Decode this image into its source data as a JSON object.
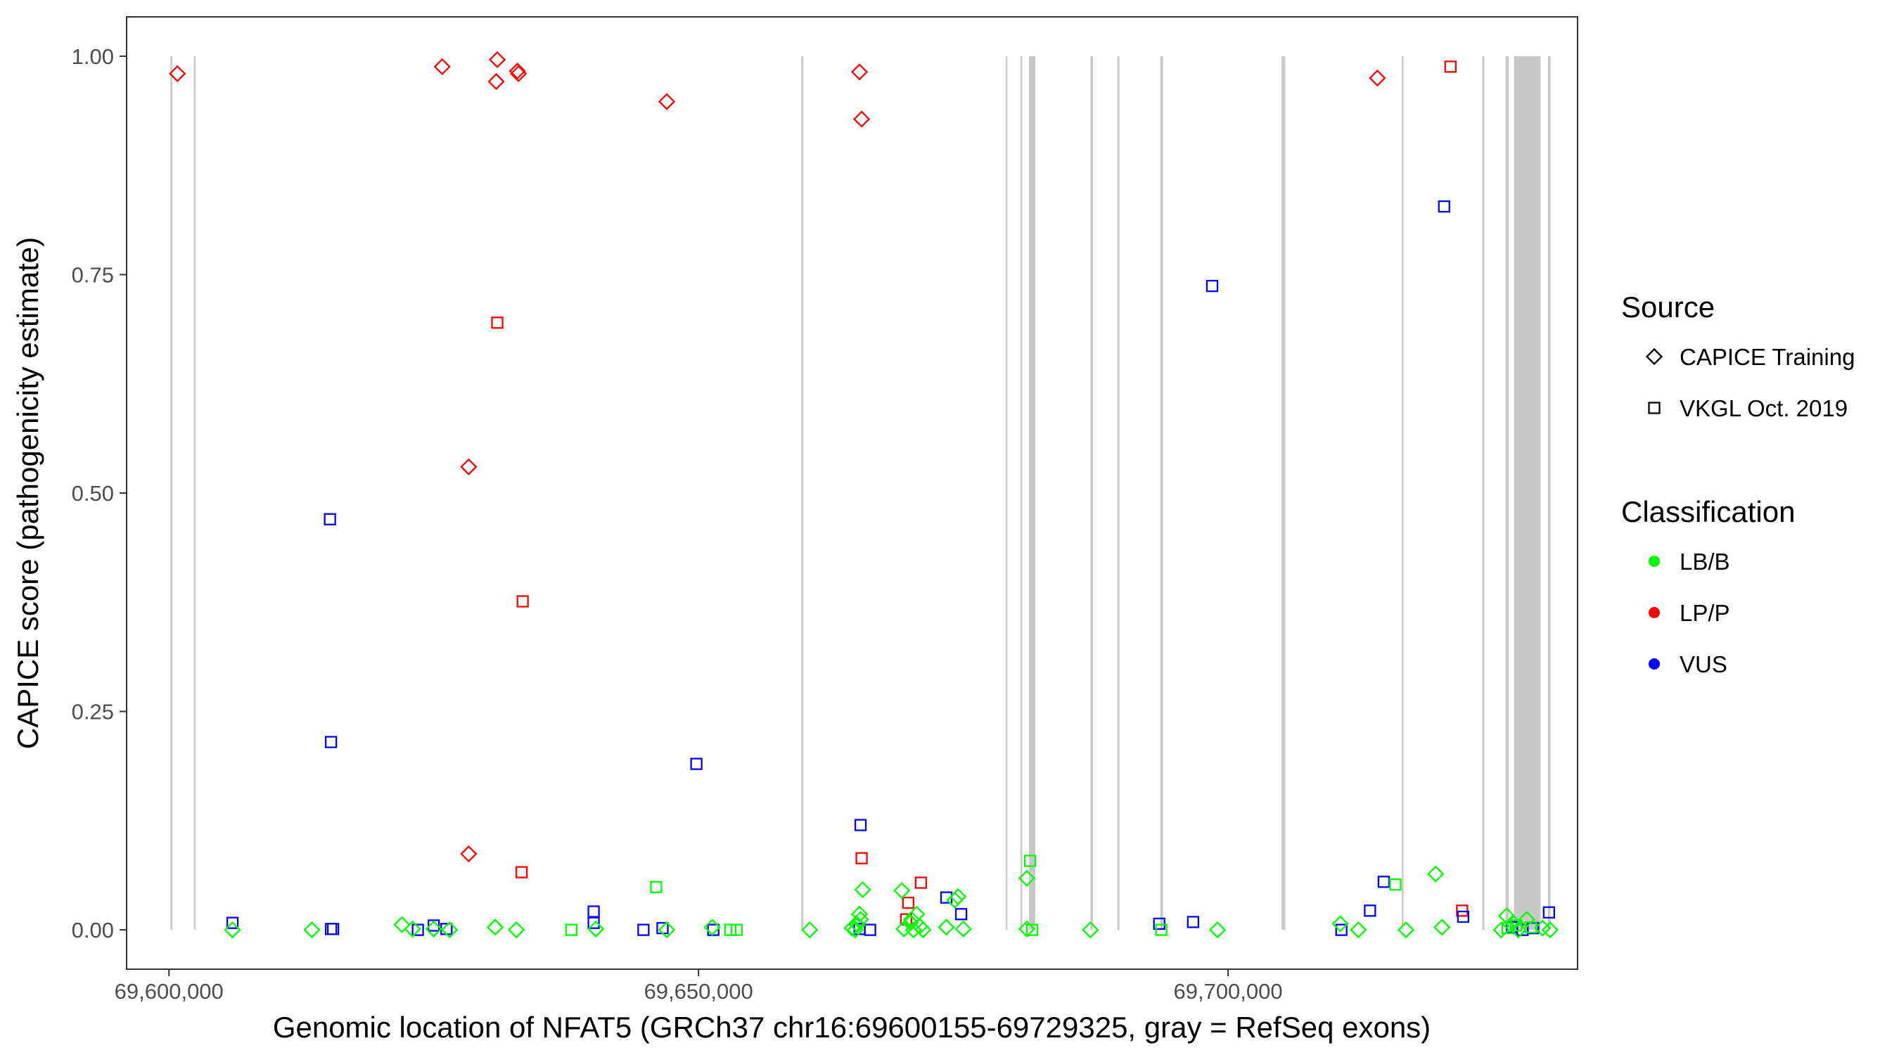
{
  "chart_data": {
    "type": "scatter",
    "title": "",
    "xlabel": "Genomic location of NFAT5 (GRCh37 chr16:69600155-69729325, gray = RefSeq exons)",
    "ylabel": "CAPICE score (pathogenicity estimate)",
    "xlim": [
      69596000,
      69733000
    ],
    "ylim": [
      -0.045,
      1.045
    ],
    "x_ticks": [
      69600000,
      69650000,
      69700000
    ],
    "x_tick_labels": [
      "69,600,000",
      "69,650,000",
      "69,700,000"
    ],
    "y_ticks": [
      0,
      0.25,
      0.5,
      0.75,
      1.0
    ],
    "y_tick_labels": [
      "0.00",
      "0.25",
      "0.50",
      "0.75",
      "1.00"
    ],
    "grid": false,
    "exons": [
      [
        69600150,
        69600250
      ],
      [
        69602350,
        69602450
      ],
      [
        69659700,
        69659900
      ],
      [
        69679000,
        69679100
      ],
      [
        69680400,
        69680550
      ],
      [
        69681200,
        69681800
      ],
      [
        69687000,
        69687250
      ],
      [
        69689550,
        69689750
      ],
      [
        69693600,
        69693850
      ],
      [
        69705050,
        69705400
      ],
      [
        69716400,
        69716550
      ],
      [
        69724000,
        69724200
      ],
      [
        69726200,
        69726500
      ],
      [
        69727000,
        69729500
      ],
      [
        69730200,
        69730450
      ]
    ],
    "colors": {
      "LB/B": "#00ff00",
      "LP/P": "#ff0000",
      "VUS": "#0000ff",
      "exon": "#c8c8c8"
    },
    "legend": {
      "position": "right",
      "source_title": "Source",
      "source_items": [
        {
          "label": "CAPICE Training",
          "shape": "diamond"
        },
        {
          "label": "VKGL Oct. 2019",
          "shape": "square"
        }
      ],
      "classification_title": "Classification",
      "classification_items": [
        {
          "label": "LB/B",
          "color": "#00ff00"
        },
        {
          "label": "LP/P",
          "color": "#ff0000"
        },
        {
          "label": "VUS",
          "color": "#0000ff"
        }
      ]
    },
    "series": [
      {
        "source": "CAPICE Training",
        "classification": "LP/P",
        "shape": "diamond",
        "color": "#ff0000",
        "points": [
          [
            69600800,
            0.98
          ],
          [
            69625800,
            0.988
          ],
          [
            69631000,
            0.996
          ],
          [
            69630900,
            0.971
          ],
          [
            69632900,
            0.983
          ],
          [
            69633000,
            0.98
          ],
          [
            69647000,
            0.948
          ],
          [
            69665200,
            0.982
          ],
          [
            69665400,
            0.928
          ],
          [
            69628300,
            0.53
          ],
          [
            69628300,
            0.087
          ],
          [
            69714100,
            0.975
          ]
        ]
      },
      {
        "source": "VKGL Oct. 2019",
        "classification": "LP/P",
        "shape": "square",
        "color": "#ff0000",
        "points": [
          [
            69631000,
            0.695
          ],
          [
            69633400,
            0.376
          ],
          [
            69633300,
            0.066
          ],
          [
            69665400,
            0.082
          ],
          [
            69669800,
            0.031
          ],
          [
            69671000,
            0.054
          ],
          [
            69721000,
            0.988
          ],
          [
            69722100,
            0.022
          ],
          [
            69669600,
            0.012
          ]
        ]
      },
      {
        "source": "VKGL Oct. 2019",
        "classification": "VUS",
        "shape": "square",
        "color": "#0000ff",
        "points": [
          [
            69606000,
            0.008
          ],
          [
            69615200,
            0.47
          ],
          [
            69615300,
            0.215
          ],
          [
            69615300,
            0.001
          ],
          [
            69615500,
            0.001
          ],
          [
            69623500,
            0.0
          ],
          [
            69625000,
            0.005
          ],
          [
            69626200,
            0.001
          ],
          [
            69640100,
            0.021
          ],
          [
            69640100,
            0.008
          ],
          [
            69644800,
            0.0
          ],
          [
            69646600,
            0.002
          ],
          [
            69649800,
            0.19
          ],
          [
            69651400,
            0.0
          ],
          [
            69665300,
            0.12
          ],
          [
            69665200,
            0.001
          ],
          [
            69666200,
            0.0
          ],
          [
            69673400,
            0.037
          ],
          [
            69674800,
            0.018
          ],
          [
            69693500,
            0.007
          ],
          [
            69696700,
            0.009
          ],
          [
            69698500,
            0.737
          ],
          [
            69710700,
            0.0
          ],
          [
            69713400,
            0.022
          ],
          [
            69714700,
            0.055
          ],
          [
            69720400,
            0.828
          ],
          [
            69722200,
            0.015
          ],
          [
            69726800,
            0.003
          ],
          [
            69727800,
            0.0
          ],
          [
            69728800,
            0.002
          ],
          [
            69730300,
            0.02
          ]
        ]
      },
      {
        "source": "CAPICE Training",
        "classification": "LB/B",
        "shape": "diamond",
        "color": "#00ff00",
        "points": [
          [
            69606000,
            0.0
          ],
          [
            69613500,
            0.0
          ],
          [
            69622000,
            0.006
          ],
          [
            69623000,
            0.001
          ],
          [
            69625000,
            0.001
          ],
          [
            69626500,
            0.0
          ],
          [
            69630800,
            0.003
          ],
          [
            69632800,
            0.0
          ],
          [
            69640300,
            0.001
          ],
          [
            69647000,
            0.0
          ],
          [
            69651300,
            0.003
          ],
          [
            69660500,
            0.0
          ],
          [
            69664500,
            0.002
          ],
          [
            69665000,
            0.006
          ],
          [
            69665300,
            0.012
          ],
          [
            69665500,
            0.046
          ],
          [
            69665200,
            0.018
          ],
          [
            69664800,
            0.0
          ],
          [
            69669200,
            0.045
          ],
          [
            69670000,
            0.008
          ],
          [
            69670300,
            0.0
          ],
          [
            69670600,
            0.018
          ],
          [
            69670900,
            0.004
          ],
          [
            69671200,
            0.0
          ],
          [
            69669400,
            0.001
          ],
          [
            69673400,
            0.003
          ],
          [
            69674200,
            0.034
          ],
          [
            69674500,
            0.038
          ],
          [
            69675000,
            0.001
          ],
          [
            69670100,
            0.012
          ],
          [
            69681000,
            0.059
          ],
          [
            69681000,
            0.001
          ],
          [
            69687000,
            0.0
          ],
          [
            69699000,
            0.0
          ],
          [
            69710600,
            0.007
          ],
          [
            69712300,
            0.0
          ],
          [
            69716800,
            0.0
          ],
          [
            69719600,
            0.064
          ],
          [
            69720200,
            0.003
          ],
          [
            69725800,
            0.0
          ],
          [
            69726300,
            0.016
          ],
          [
            69726900,
            0.008
          ],
          [
            69727400,
            0.0
          ],
          [
            69729700,
            0.002
          ],
          [
            69730400,
            0.0
          ],
          [
            69728200,
            0.012
          ]
        ]
      },
      {
        "source": "VKGL Oct. 2019",
        "classification": "LB/B",
        "shape": "square",
        "color": "#00ff00",
        "points": [
          [
            69638000,
            0.0
          ],
          [
            69646000,
            0.049
          ],
          [
            69653000,
            0.0
          ],
          [
            69653600,
            0.0
          ],
          [
            69681300,
            0.079
          ],
          [
            69681500,
            0.0
          ],
          [
            69693700,
            0.0
          ],
          [
            69715800,
            0.052
          ],
          [
            69726400,
            0.002
          ],
          [
            69727200,
            0.005
          ],
          [
            69728600,
            0.003
          ]
        ]
      }
    ]
  }
}
